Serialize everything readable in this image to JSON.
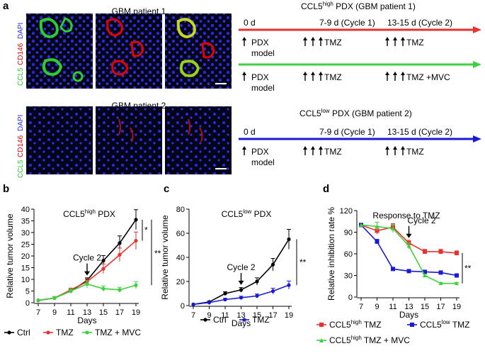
{
  "panel_labels": {
    "a": "a",
    "b": "b",
    "c": "c",
    "d": "d"
  },
  "panel_a": {
    "stain_label": {
      "ccl5": "CCL5",
      "cd146": "CD146",
      "dapi": "DAPI"
    },
    "patient1_title": "GBM patient 1",
    "patient2_title": "GBM patient 2",
    "colors": {
      "ccl5": "#2ecc2e",
      "cd146": "#e60000",
      "dapi": "#2a2adc"
    }
  },
  "timelines": {
    "high_title_pre": "CCL5",
    "high_title_sup": "high",
    "high_title_post": " PDX (GBM patient 1)",
    "low_title_pre": "CCL5",
    "low_title_sup": "low",
    "low_title_post": " PDX (GBM patient 2)",
    "day0": "0 d",
    "cycle1": "7-9 d (Cycle 1)",
    "cycle2": "13-15 d (Cycle 2)",
    "pdx": "PDX",
    "model": "model",
    "tmz": "TMZ",
    "tmz_mvc": "TMZ +MVC",
    "colors": {
      "red": "#e8322d",
      "green": "#3dd13d",
      "blue": "#1a1ad6"
    }
  },
  "chart_data": [
    {
      "type": "line",
      "title_pre": "CCL5",
      "title_sup": "high",
      "title_post": " PDX",
      "xlabel": "Days",
      "ylabel": "Relative tumor volume",
      "x": [
        7,
        9,
        11,
        13,
        15,
        17,
        19
      ],
      "xticks": [
        "7",
        "9",
        "11",
        "13",
        "15",
        "17",
        "19"
      ],
      "ylim": [
        0,
        40
      ],
      "yticks": [
        "0",
        "5",
        "10",
        "15",
        "20",
        "25",
        "30",
        "35",
        "40"
      ],
      "series": [
        {
          "name": "Ctrl",
          "color": "#000000",
          "values": [
            1,
            2,
            5,
            9.5,
            18,
            25.5,
            35.5
          ]
        },
        {
          "name": "TMZ",
          "color": "#e8322d",
          "values": [
            1,
            2,
            5.5,
            9,
            14.5,
            20.5,
            26.5
          ]
        },
        {
          "name": "TMZ + MVC",
          "color": "#3dd13d",
          "values": [
            1,
            2,
            5,
            8,
            6,
            5.5,
            7.5
          ]
        }
      ],
      "annotations": {
        "cycle": "Cycle 2",
        "sig1": "*",
        "sig2": "**"
      }
    },
    {
      "type": "line",
      "title_pre": "CCL5",
      "title_sup": "low",
      "title_post": " PDX",
      "xlabel": "Days",
      "ylabel": "Relative tumor volume",
      "x": [
        7,
        9,
        11,
        13,
        15,
        17,
        19
      ],
      "xticks": [
        "7",
        "9",
        "11",
        "13",
        "15",
        "17",
        "19"
      ],
      "ylim": [
        0,
        80
      ],
      "yticks": [
        "0",
        "20",
        "40",
        "60",
        "80"
      ],
      "series": [
        {
          "name": "Ctrl",
          "color": "#000000",
          "values": [
            1,
            3,
            10,
            13,
            20,
            34,
            55
          ]
        },
        {
          "name": "TMZ",
          "color": "#1a1ad6",
          "values": [
            1,
            2.5,
            5,
            6.5,
            8,
            12,
            17
          ]
        }
      ],
      "annotations": {
        "cycle": "Cycle 2",
        "sig": "**"
      }
    },
    {
      "type": "line",
      "title": "Response to TMZ",
      "xlabel": "Days",
      "ylabel": "Relative inhibition rate %",
      "x": [
        7,
        9,
        11,
        13,
        15,
        17,
        19
      ],
      "xticks": [
        "7",
        "9",
        "11",
        "13",
        "15",
        "17",
        "19"
      ],
      "ylim": [
        0,
        120
      ],
      "yticks": [
        "0",
        "30",
        "60",
        "90",
        "120"
      ],
      "series": [
        {
          "name_pre": "CCL5",
          "name_sup": "high",
          "name_post": " TMZ",
          "color": "#e8322d",
          "marker": "square",
          "values": [
            100,
            92,
            97,
            75,
            63,
            63,
            61
          ]
        },
        {
          "name_pre": "CCL5",
          "name_sup": "low",
          "name_post": " TMZ",
          "color": "#1a1ad6",
          "marker": "square",
          "values": [
            100,
            77,
            39,
            36,
            35,
            34,
            30
          ]
        },
        {
          "name_pre": "CCL5",
          "name_sup": "high",
          "name_post": " TMZ + MVC",
          "color": "#3dd13d",
          "marker": "triangle",
          "values": [
            100,
            98,
            95,
            71,
            30,
            19,
            19
          ]
        }
      ],
      "annotations": {
        "cycle": "Cycle 2",
        "sig": "**"
      }
    }
  ]
}
